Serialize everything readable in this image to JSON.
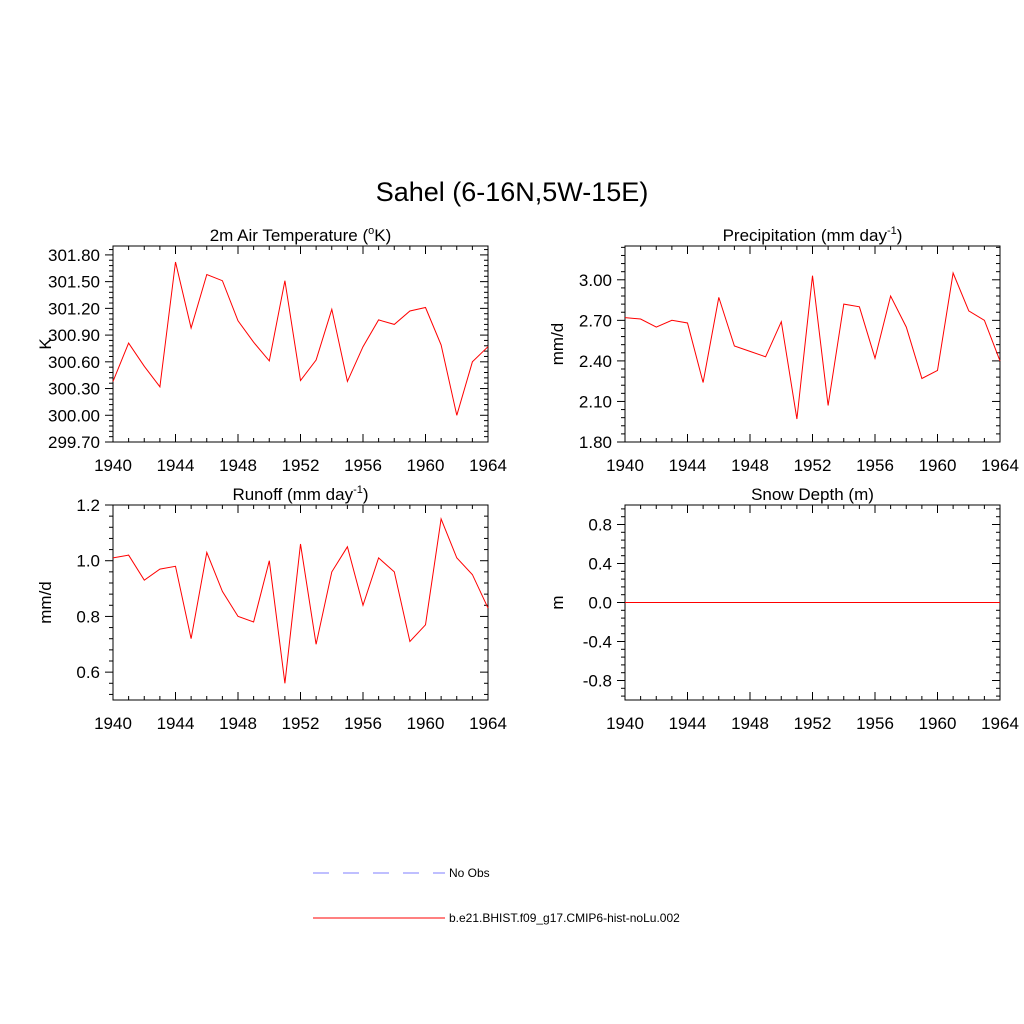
{
  "figure": {
    "title": "Sahel (6-16N,5W-15E)"
  },
  "chart_data": [
    {
      "type": "line",
      "title": "2m Air Temperature (",
      "title_sup": "o",
      "title_post": "K)",
      "ylabel": "K",
      "xlabel": "",
      "xlim": [
        1940,
        1964
      ],
      "ylim": [
        299.7,
        301.9
      ],
      "xticks": [
        "1940",
        "1944",
        "1948",
        "1952",
        "1956",
        "1960",
        "1964"
      ],
      "yticks": [
        "299.70",
        "300.00",
        "300.30",
        "300.60",
        "300.90",
        "301.20",
        "301.50",
        "301.80"
      ],
      "ytick_values": [
        299.7,
        300.0,
        300.3,
        300.6,
        300.9,
        301.2,
        301.5,
        301.8
      ],
      "grid": false,
      "series": [
        {
          "color": "#ff0000",
          "x": [
            1940,
            1941,
            1942,
            1943,
            1944,
            1945,
            1946,
            1947,
            1948,
            1949,
            1950,
            1951,
            1952,
            1953,
            1954,
            1955,
            1956,
            1957,
            1958,
            1959,
            1960,
            1961,
            1962,
            1963,
            1964
          ],
          "values": [
            300.38,
            300.81,
            300.55,
            300.32,
            301.72,
            300.98,
            301.58,
            301.51,
            301.06,
            300.82,
            300.61,
            301.51,
            300.39,
            300.62,
            301.19,
            300.38,
            300.77,
            301.07,
            301.02,
            301.17,
            301.21,
            300.79,
            300.0,
            300.6,
            300.77
          ]
        }
      ]
    },
    {
      "type": "line",
      "title": "Precipitation (mm day",
      "title_sup": "-1",
      "title_post": ")",
      "ylabel": "mm/d",
      "xlabel": "",
      "xlim": [
        1940,
        1964
      ],
      "ylim": [
        1.8,
        3.25
      ],
      "xticks": [
        "1940",
        "1944",
        "1948",
        "1952",
        "1956",
        "1960",
        "1964"
      ],
      "yticks": [
        "1.80",
        "2.10",
        "2.40",
        "2.70",
        "3.00"
      ],
      "ytick_values": [
        1.8,
        2.1,
        2.4,
        2.7,
        3.0
      ],
      "grid": false,
      "series": [
        {
          "color": "#ff0000",
          "x": [
            1940,
            1941,
            1942,
            1943,
            1944,
            1945,
            1946,
            1947,
            1948,
            1949,
            1950,
            1951,
            1952,
            1953,
            1954,
            1955,
            1956,
            1957,
            1958,
            1959,
            1960,
            1961,
            1962,
            1963,
            1964
          ],
          "values": [
            2.72,
            2.71,
            2.65,
            2.7,
            2.68,
            2.24,
            2.87,
            2.51,
            2.47,
            2.43,
            2.69,
            1.97,
            3.03,
            2.07,
            2.82,
            2.8,
            2.42,
            2.88,
            2.65,
            2.27,
            2.33,
            3.05,
            2.77,
            2.7,
            2.4
          ]
        }
      ]
    },
    {
      "type": "line",
      "title": "Runoff (mm day",
      "title_sup": "-1",
      "title_post": ")",
      "ylabel": "mm/d",
      "xlabel": "",
      "xlim": [
        1940,
        1964
      ],
      "ylim": [
        0.5,
        1.2
      ],
      "xticks": [
        "1940",
        "1944",
        "1948",
        "1952",
        "1956",
        "1960",
        "1964"
      ],
      "yticks": [
        "0.6",
        "0.8",
        "1.0",
        "1.2"
      ],
      "ytick_values": [
        0.6,
        0.8,
        1.0,
        1.2
      ],
      "grid": false,
      "series": [
        {
          "color": "#ff0000",
          "x": [
            1940,
            1941,
            1942,
            1943,
            1944,
            1945,
            1946,
            1947,
            1948,
            1949,
            1950,
            1951,
            1952,
            1953,
            1954,
            1955,
            1956,
            1957,
            1958,
            1959,
            1960,
            1961,
            1962,
            1963,
            1964
          ],
          "values": [
            1.01,
            1.02,
            0.93,
            0.97,
            0.98,
            0.72,
            1.03,
            0.89,
            0.8,
            0.78,
            1.0,
            0.56,
            1.06,
            0.7,
            0.96,
            1.05,
            0.84,
            1.01,
            0.96,
            0.71,
            0.77,
            1.15,
            1.01,
            0.95,
            0.83
          ]
        }
      ]
    },
    {
      "type": "line",
      "title": "Snow Depth (m)",
      "title_sup": "",
      "title_post": "",
      "ylabel": "m",
      "xlabel": "",
      "xlim": [
        1940,
        1964
      ],
      "ylim": [
        -1.0,
        1.0
      ],
      "xticks": [
        "1940",
        "1944",
        "1948",
        "1952",
        "1956",
        "1960",
        "1964"
      ],
      "yticks": [
        "-0.8",
        "-0.4",
        "0.0",
        "0.4",
        "0.8"
      ],
      "ytick_values": [
        -0.8,
        -0.4,
        0.0,
        0.4,
        0.8
      ],
      "grid": false,
      "series": [
        {
          "color": "#ff0000",
          "x": [
            1940,
            1964
          ],
          "values": [
            0.0,
            0.0
          ]
        }
      ]
    }
  ],
  "legend": {
    "items": [
      {
        "label": "No Obs",
        "color": "#9999ff",
        "dash": "dashed"
      },
      {
        "label": "b.e21.BHIST.f09_g17.CMIP6-hist-noLu.002",
        "color": "#ff0000",
        "dash": "solid"
      }
    ]
  }
}
